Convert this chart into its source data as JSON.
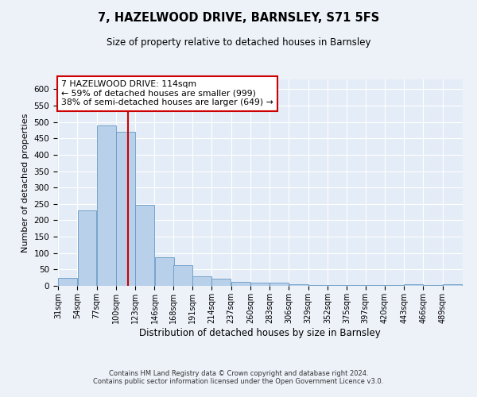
{
  "title": "7, HAZELWOOD DRIVE, BARNSLEY, S71 5FS",
  "subtitle": "Size of property relative to detached houses in Barnsley",
  "xlabel": "Distribution of detached houses by size in Barnsley",
  "ylabel": "Number of detached properties",
  "property_label": "7 HAZELWOOD DRIVE: 114sqm",
  "annotation_line1": "← 59% of detached houses are smaller (999)",
  "annotation_line2": "38% of semi-detached houses are larger (649) →",
  "bins": [
    31,
    54,
    77,
    100,
    123,
    146,
    168,
    191,
    214,
    237,
    260,
    283,
    306,
    329,
    352,
    375,
    397,
    420,
    443,
    466,
    489
  ],
  "bar_heights": [
    25,
    230,
    490,
    470,
    248,
    88,
    62,
    30,
    22,
    12,
    10,
    9,
    5,
    3,
    3,
    3,
    2,
    2,
    6,
    2,
    4
  ],
  "bar_color": "#b8d0ea",
  "bar_edge_color": "#6899c4",
  "vline_color": "#cc0000",
  "vline_x": 114,
  "annotation_box_color": "#cc0000",
  "ylim": [
    0,
    630
  ],
  "yticks": [
    0,
    50,
    100,
    150,
    200,
    250,
    300,
    350,
    400,
    450,
    500,
    550,
    600
  ],
  "footer_line1": "Contains HM Land Registry data © Crown copyright and database right 2024.",
  "footer_line2": "Contains public sector information licensed under the Open Government Licence v3.0.",
  "background_color": "#edf2f9",
  "plot_bg_color": "#e4ecf7"
}
